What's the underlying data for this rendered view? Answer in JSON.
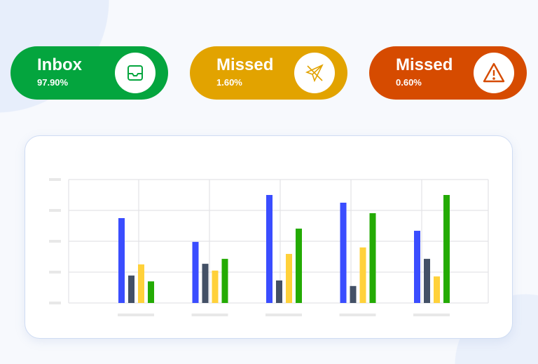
{
  "stats": [
    {
      "title": "Inbox",
      "value": "97.90%",
      "color": "#04a53e",
      "icon": "inbox-tray-icon"
    },
    {
      "title": "Missed",
      "value": "1.60%",
      "color": "#e2a300",
      "icon": "crossed-paper-plane-icon"
    },
    {
      "title": "Missed",
      "value": "0.60%",
      "color": "#d64b00",
      "icon": "warning-triangle-icon"
    }
  ],
  "chart_data": {
    "type": "bar",
    "title": "",
    "xlabel": "",
    "ylabel": "",
    "ylim": [
      0,
      4
    ],
    "grid": true,
    "categories": [
      "",
      "",
      "",
      "",
      ""
    ],
    "series": [
      {
        "color": "#3a4dff",
        "values": [
          2.75,
          1.98,
          3.5,
          3.25,
          2.34
        ]
      },
      {
        "color": "#435066",
        "values": [
          0.89,
          1.27,
          0.73,
          0.55,
          1.43
        ]
      },
      {
        "color": "#ffd13a",
        "values": [
          1.25,
          1.05,
          1.59,
          1.8,
          0.86
        ]
      },
      {
        "color": "#24ab04",
        "values": [
          0.7,
          1.43,
          2.41,
          2.91,
          3.5
        ]
      }
    ]
  }
}
